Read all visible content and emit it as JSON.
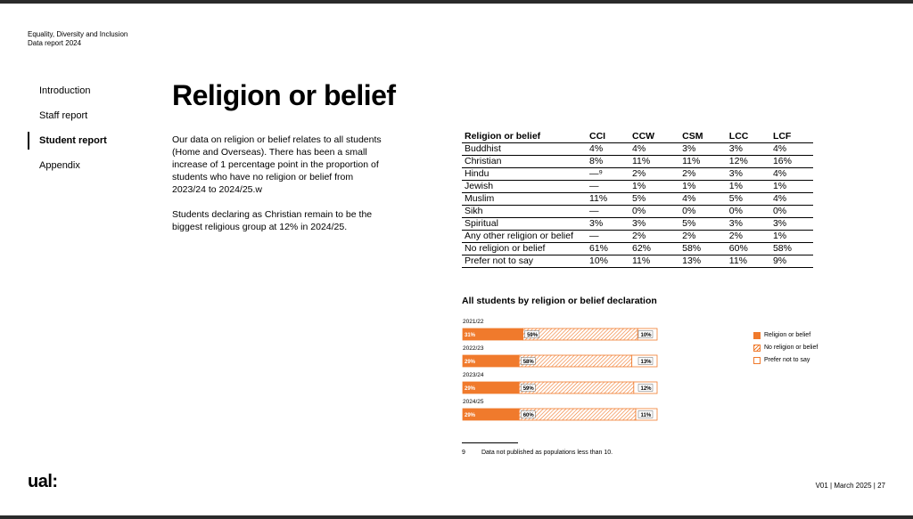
{
  "header": {
    "line1": "Equality, Diversity and Inclusion",
    "line2": "Data report 2024"
  },
  "nav": [
    {
      "label": "Introduction",
      "active": false
    },
    {
      "label": "Staff report",
      "active": false
    },
    {
      "label": "Student report",
      "active": true
    },
    {
      "label": "Appendix",
      "active": false
    }
  ],
  "title": "Religion or belief",
  "body": {
    "p1": "Our data on religion or belief relates to all students (Home and Overseas). There has been a small increase of 1 percentage point in the proportion of students who have no religion or belief from 2023/24 to 2024/25.w",
    "p2": "Students declaring as Christian remain to be the biggest religious group at 12% in 2024/25."
  },
  "table": {
    "headers": [
      "Religion or belief",
      "CCI",
      "CCW",
      "CSM",
      "LCC",
      "LCF"
    ],
    "rows": [
      [
        "Buddhist",
        "4%",
        "4%",
        "3%",
        "3%",
        "4%"
      ],
      [
        "Christian",
        "8%",
        "11%",
        "11%",
        "12%",
        "16%"
      ],
      [
        "Hindu",
        "—⁹",
        "2%",
        "2%",
        "3%",
        "4%"
      ],
      [
        "Jewish",
        "—",
        "1%",
        "1%",
        "1%",
        "1%"
      ],
      [
        "Muslim",
        "11%",
        "5%",
        "4%",
        "5%",
        "4%"
      ],
      [
        "Sikh",
        "—",
        "0%",
        "0%",
        "0%",
        "0%"
      ],
      [
        "Spiritual",
        "3%",
        "3%",
        "5%",
        "3%",
        "3%"
      ],
      [
        "Any other religion or belief",
        "—",
        "2%",
        "2%",
        "2%",
        "1%"
      ],
      [
        "No religion or belief",
        "61%",
        "62%",
        "58%",
        "60%",
        "58%"
      ],
      [
        "Prefer not to say",
        "10%",
        "11%",
        "13%",
        "11%",
        "9%"
      ]
    ]
  },
  "chart_data": {
    "type": "bar",
    "title": "All students by religion or belief declaration",
    "stacked": true,
    "orientation": "horizontal",
    "categories": [
      "2021/22",
      "2022/23",
      "2023/24",
      "2024/25"
    ],
    "series": [
      {
        "name": "Religion or belief",
        "values": [
          31,
          29,
          29,
          29
        ],
        "labels": [
          "31%",
          "29%",
          "29%",
          "29%"
        ]
      },
      {
        "name": "No religion or belief",
        "values": [
          59,
          58,
          59,
          60
        ],
        "labels": [
          "59%",
          "58%",
          "59%",
          "60%"
        ]
      },
      {
        "name": "Prefer not to say",
        "values": [
          10,
          13,
          12,
          11
        ],
        "labels": [
          "10%",
          "13%",
          "12%",
          "11%"
        ]
      }
    ],
    "colors": {
      "accent": "#f07a2c",
      "label_on_solid": "#ffffff",
      "label_on_light": "#000000"
    }
  },
  "footnote": {
    "num": "9",
    "text": "Data not published as populations less than 10."
  },
  "logo": "ual:",
  "pagefoot": "V01 | March 2025 | 27"
}
